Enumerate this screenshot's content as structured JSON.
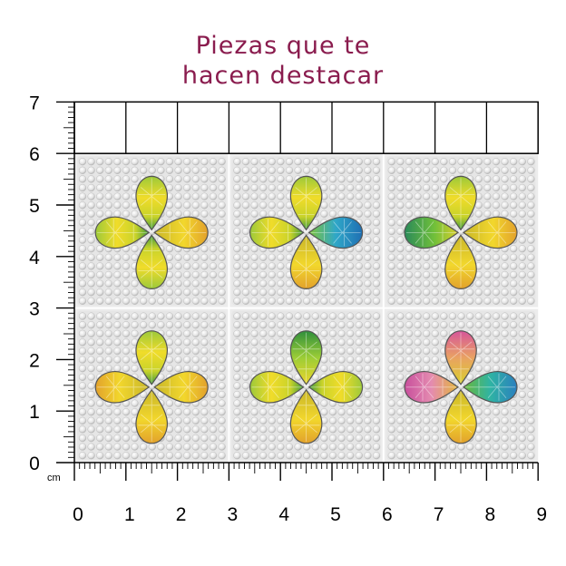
{
  "title": {
    "line1": "Piezas que te",
    "line2": "hacen destacar"
  },
  "ruler": {
    "unit_label": "cm",
    "x_labels": [
      "0",
      "1",
      "2",
      "3",
      "4",
      "5",
      "6",
      "7",
      "8",
      "9"
    ],
    "y_labels": [
      "0",
      "1",
      "2",
      "3",
      "4",
      "5",
      "6",
      "7"
    ]
  },
  "colors": {
    "title": "#8a1c4e",
    "ruler_line": "#000000",
    "stone_base": "#dcdcdc",
    "gem_yellow": "#e8d21c",
    "gem_green": "#3f9a3a",
    "gem_orange": "#e0892a",
    "gem_blue": "#2f8fc4",
    "gem_pink": "#d65a94"
  },
  "tiles": [
    {
      "name": "tile-1",
      "petals": [
        "yellow-green",
        "yellow-orange",
        "yellow-green",
        "yellow-green"
      ]
    },
    {
      "name": "tile-2",
      "petals": [
        "yellow-green",
        "blue-teal",
        "yellow-orange",
        "yellow-green"
      ]
    },
    {
      "name": "tile-3",
      "petals": [
        "yellow-green",
        "yellow-orange",
        "yellow-orange",
        "green-teal"
      ]
    },
    {
      "name": "tile-4",
      "petals": [
        "yellow-green",
        "yellow-orange",
        "yellow-orange",
        "yellow-orange"
      ]
    },
    {
      "name": "tile-5",
      "petals": [
        "green-yellow",
        "yellow-green",
        "yellow-orange",
        "yellow-green"
      ]
    },
    {
      "name": "tile-6",
      "petals": [
        "pink-yellow",
        "green-blue",
        "yellow-orange",
        "pink-orange"
      ]
    }
  ]
}
